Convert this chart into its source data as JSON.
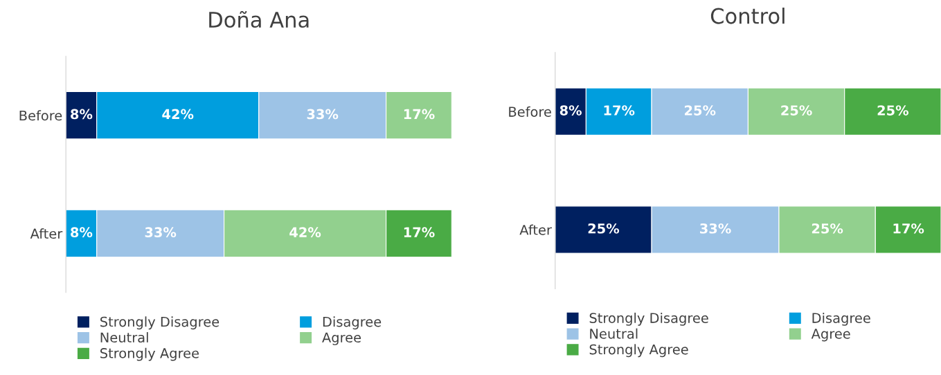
{
  "chart_data": [
    {
      "type": "bar",
      "orientation": "horizontal",
      "stacked": true,
      "title": "Doña Ana",
      "categories": [
        "Before",
        "After"
      ],
      "tick_labels": "y",
      "legend": "bottom",
      "grid": false,
      "series": [
        {
          "name": "Strongly Disagree",
          "color": "#002060",
          "values": [
            8,
            null
          ],
          "value_labels": [
            "8%",
            null
          ]
        },
        {
          "name": "Disagree",
          "color": "#009ede",
          "values": [
            42,
            8
          ],
          "value_labels": [
            "42%",
            "8%"
          ]
        },
        {
          "name": "Neutral",
          "color": "#9dc3e6",
          "values": [
            33,
            33
          ],
          "value_labels": [
            "33%",
            "33%"
          ]
        },
        {
          "name": "Agree",
          "color": "#92d08e",
          "values": [
            17,
            42
          ],
          "value_labels": [
            "17%",
            "42%"
          ]
        },
        {
          "name": "Strongly Agree",
          "color": "#4aab45",
          "values": [
            null,
            17
          ],
          "value_labels": [
            null,
            "17%"
          ]
        }
      ]
    },
    {
      "type": "bar",
      "orientation": "horizontal",
      "stacked": true,
      "title": "Control",
      "categories": [
        "Before",
        "After"
      ],
      "tick_labels": "y",
      "legend": "bottom",
      "grid": false,
      "series": [
        {
          "name": "Strongly Disagree",
          "color": "#002060",
          "values": [
            8,
            25
          ],
          "value_labels": [
            "8%",
            "25%"
          ]
        },
        {
          "name": "Disagree",
          "color": "#009ede",
          "values": [
            17,
            null
          ],
          "value_labels": [
            "17%",
            null
          ]
        },
        {
          "name": "Neutral",
          "color": "#9dc3e6",
          "values": [
            25,
            33
          ],
          "value_labels": [
            "25%",
            "33%"
          ]
        },
        {
          "name": "Agree",
          "color": "#92d08e",
          "values": [
            25,
            25
          ],
          "value_labels": [
            "25%",
            "25%"
          ]
        },
        {
          "name": "Strongly Agree",
          "color": "#4aab45",
          "values": [
            25,
            17
          ],
          "value_labels": [
            "25%",
            "17%"
          ]
        }
      ]
    }
  ]
}
